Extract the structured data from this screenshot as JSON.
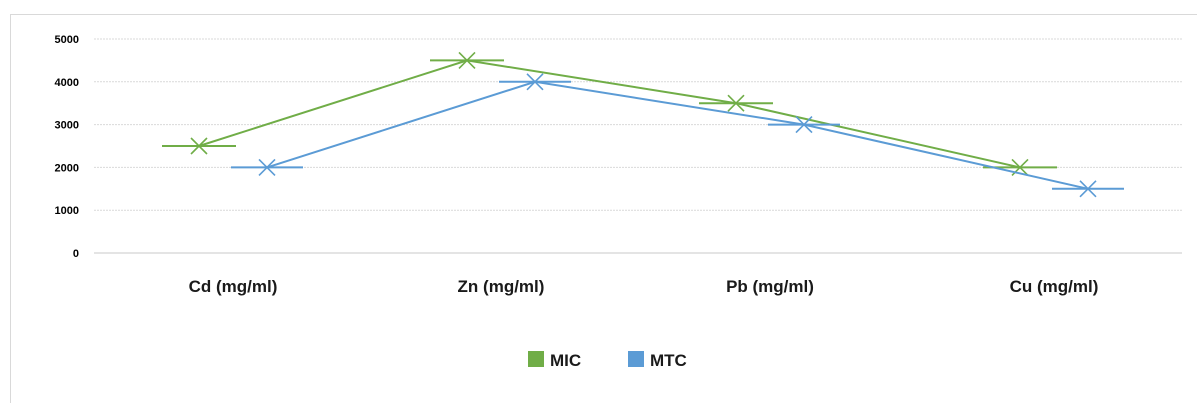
{
  "chart_data": {
    "type": "line",
    "categories": [
      "Cd (mg/ml)",
      "Zn (mg/ml)",
      "Pb (mg/ml)",
      "Cu (mg/ml)"
    ],
    "series": [
      {
        "name": "MIC",
        "values": [
          2500,
          4500,
          3500,
          2000
        ],
        "color": "#70ad47",
        "marker": "x-with-bar"
      },
      {
        "name": "MTC",
        "values": [
          2000,
          4000,
          3000,
          1500
        ],
        "color": "#5b9bd5",
        "marker": "x-with-bar"
      }
    ],
    "yticks": [
      "0",
      "1000",
      "2000",
      "3000",
      "4000",
      "5000"
    ],
    "ylim": [
      0,
      5000
    ],
    "grid": true,
    "legend": "bottom-center",
    "title": "",
    "xlabel": "",
    "ylabel": ""
  }
}
